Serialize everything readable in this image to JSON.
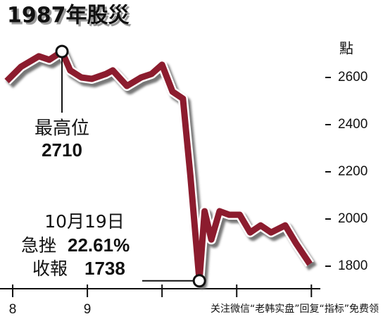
{
  "chart_data": {
    "type": "line",
    "title": "1987年股災",
    "y_axis_label": "點",
    "x": [
      7.92,
      8.11,
      8.35,
      8.49,
      8.66,
      8.77,
      8.92,
      9.06,
      9.25,
      9.34,
      9.53,
      9.72,
      9.86,
      10.0,
      10.14,
      10.28,
      10.38,
      10.5,
      10.57,
      10.66,
      10.77,
      10.9,
      11.04,
      11.18,
      11.32,
      11.46,
      11.65,
      11.79,
      11.98
    ],
    "series": [
      {
        "color": "#8c1c2e",
        "values": [
          2585,
          2645,
          2690,
          2675,
          2710,
          2630,
          2600,
          2594,
          2615,
          2630,
          2564,
          2600,
          2615,
          2654,
          2540,
          2510,
          2182,
          1738,
          2033,
          1913,
          2033,
          2018,
          2018,
          1943,
          1973,
          1943,
          1973,
          1899,
          1809
        ]
      }
    ],
    "xlim": [
      7.83,
      12.12
    ],
    "xticks": [
      {
        "value": 8,
        "label": "8"
      },
      {
        "value": 9,
        "label": "9"
      },
      {
        "value": 10,
        "label": null
      },
      {
        "value": 11,
        "label": null
      },
      {
        "value": 12,
        "label": null
      }
    ],
    "ylim": [
      1700,
      2800
    ],
    "yticks": [
      1800,
      2000,
      2200,
      2400,
      2600
    ],
    "annotations": {
      "peak": {
        "label": "最高位",
        "point": 4
      },
      "low": {
        "date": "10月19日",
        "drop_label": "急挫",
        "drop": "22.61%",
        "close_label": "收報",
        "point": 17
      }
    },
    "watermark": "关注微信“老韩实盘”回复“指标”免费领"
  }
}
